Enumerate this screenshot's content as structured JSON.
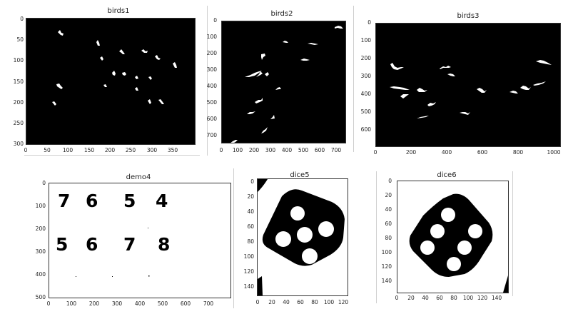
{
  "figures": [
    {
      "id": "birds1",
      "title": "birds1",
      "yticks": [
        "0",
        "50",
        "100",
        "150",
        "200",
        "250",
        "300"
      ],
      "xticks": [
        "0",
        "50",
        "100",
        "150",
        "200",
        "250",
        "300",
        "350"
      ],
      "background": "#000000"
    },
    {
      "id": "birds2",
      "title": "birds2",
      "yticks": [
        "0",
        "100",
        "200",
        "300",
        "400",
        "500",
        "600",
        "700"
      ],
      "xticks": [
        "0",
        "100",
        "200",
        "300",
        "400",
        "500",
        "600",
        "700"
      ],
      "background": "#000000"
    },
    {
      "id": "birds3",
      "title": "birds3",
      "yticks": [
        "0",
        "100",
        "200",
        "300",
        "400",
        "500",
        "600"
      ],
      "xticks": [
        "0",
        "200",
        "400",
        "600",
        "800",
        "1000"
      ],
      "background": "#000000"
    },
    {
      "id": "demo4",
      "title": "demo4",
      "yticks": [
        "0",
        "100",
        "200",
        "300",
        "400",
        "500"
      ],
      "xticks": [
        "0",
        "100",
        "200",
        "300",
        "400",
        "500",
        "600",
        "700"
      ],
      "digits_row1": [
        "7",
        "6",
        "5",
        "4"
      ],
      "digits_row2": [
        "5",
        "6",
        "7",
        "8"
      ],
      "background": "#ffffff"
    },
    {
      "id": "dice5",
      "title": "dice5",
      "yticks": [
        "0",
        "20",
        "40",
        "60",
        "80",
        "100",
        "120",
        "140"
      ],
      "xticks": [
        "0",
        "20",
        "40",
        "60",
        "80",
        "100",
        "120"
      ],
      "background": "#ffffff"
    },
    {
      "id": "dice6",
      "title": "dice6",
      "yticks": [
        "0",
        "20",
        "40",
        "60",
        "80",
        "100",
        "120",
        "140"
      ],
      "xticks": [
        "0",
        "20",
        "40",
        "60",
        "80",
        "100",
        "120",
        "140"
      ],
      "background": "#ffffff"
    }
  ]
}
